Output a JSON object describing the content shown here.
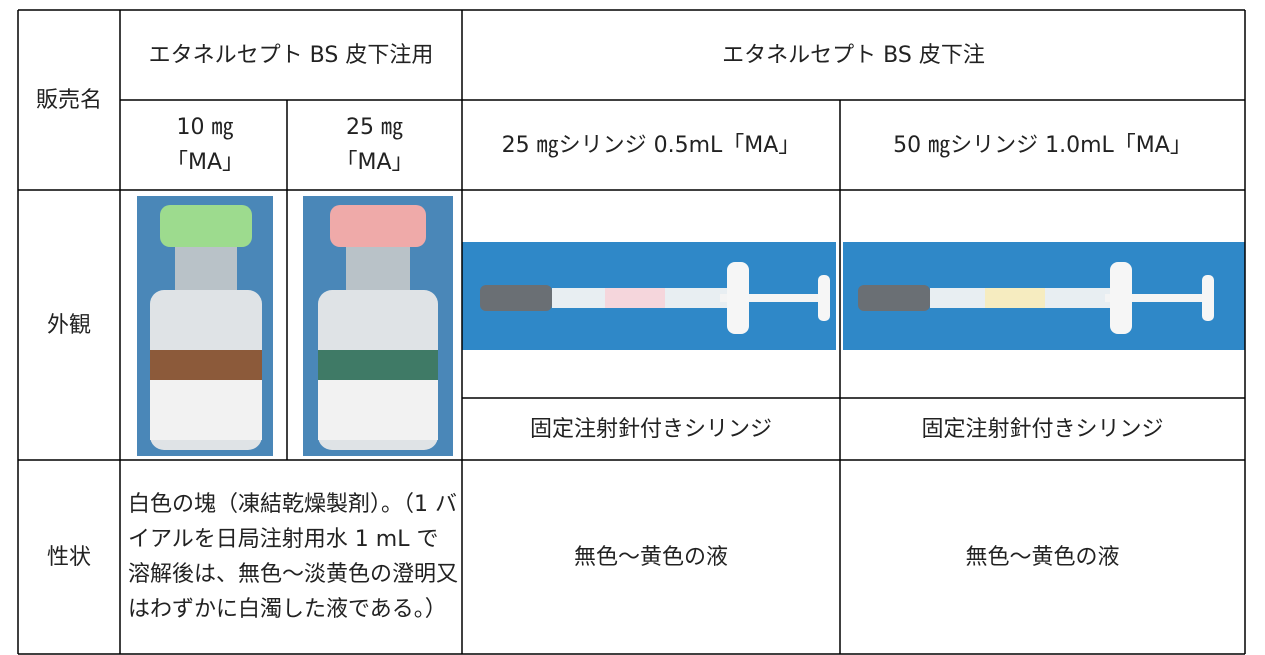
{
  "table": {
    "row_headers": [
      "販売名",
      "外観",
      "性状"
    ],
    "product_groups": [
      "エタネルセプト BS 皮下注用",
      "エタネルセプト BS 皮下注"
    ],
    "products": [
      "10 ㎎「MA」",
      "25 ㎎「MA」",
      "25 ㎎シリンジ 0.5mL「MA」",
      "50 ㎎シリンジ 1.0mL「MA」"
    ],
    "appearance_notes": [
      "固定注射針付きシリンジ",
      "固定注射針付きシリンジ"
    ],
    "properties": [
      "白色の塊（凍結乾燥製剤）。（1 バイアルを日局注射用水 1 mL で溶解後は、無色～淡黄色の澄明又はわずかに白濁した液である。）",
      "無色～黄色の液",
      "無色～黄色の液"
    ]
  }
}
